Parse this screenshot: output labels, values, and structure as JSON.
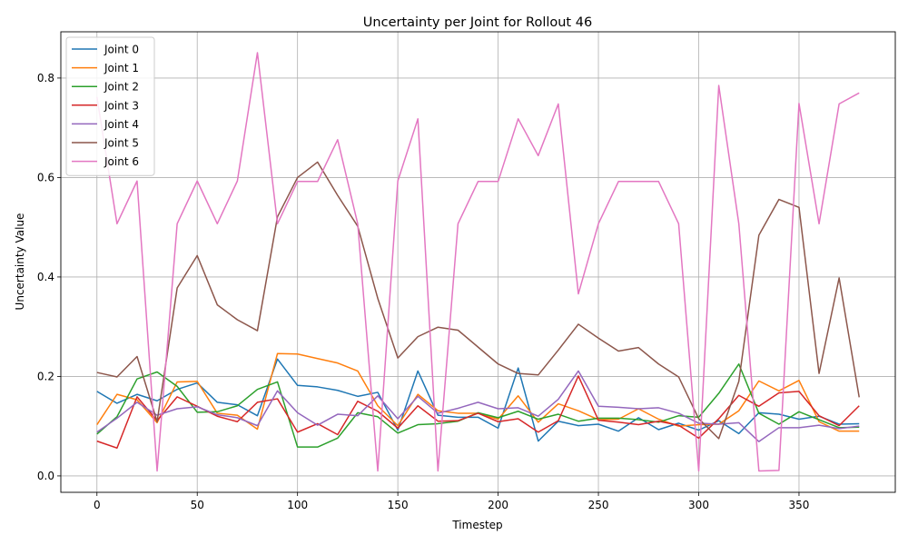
{
  "chart_data": {
    "type": "line",
    "title": "Uncertainty per Joint for Rollout 46",
    "xlabel": "Timestep",
    "ylabel": "Uncertainty Value",
    "xlim": [
      -18,
      398
    ],
    "ylim": [
      -0.033,
      0.893
    ],
    "xticks": [
      "0",
      "50",
      "100",
      "150",
      "200",
      "250",
      "300",
      "350"
    ],
    "xtick_values": [
      0,
      50,
      100,
      150,
      200,
      250,
      300,
      350
    ],
    "yticks": [
      "0.0",
      "0.2",
      "0.4",
      "0.6",
      "0.8"
    ],
    "ytick_values": [
      0.0,
      0.2,
      0.4,
      0.6,
      0.8
    ],
    "grid": true,
    "legend_position": "upper-left",
    "x": [
      0,
      10,
      20,
      30,
      40,
      50,
      60,
      70,
      80,
      90,
      100,
      110,
      120,
      130,
      140,
      150,
      160,
      170,
      180,
      190,
      200,
      210,
      220,
      230,
      240,
      250,
      260,
      270,
      280,
      290,
      300,
      310,
      320,
      330,
      340,
      350,
      360,
      370,
      380
    ],
    "series": [
      {
        "name": "Joint 0",
        "color": "#1f77b4",
        "values": [
          0.17,
          0.146,
          0.164,
          0.151,
          0.174,
          0.187,
          0.148,
          0.143,
          0.121,
          0.235,
          0.182,
          0.179,
          0.172,
          0.16,
          0.168,
          0.092,
          0.211,
          0.122,
          0.118,
          0.118,
          0.096,
          0.217,
          0.07,
          0.11,
          0.101,
          0.104,
          0.09,
          0.117,
          0.093,
          0.106,
          0.092,
          0.111,
          0.085,
          0.127,
          0.124,
          0.114,
          0.12,
          0.104,
          0.105
        ]
      },
      {
        "name": "Joint 1",
        "color": "#ff7f0e",
        "values": [
          0.103,
          0.164,
          0.153,
          0.107,
          0.189,
          0.19,
          0.126,
          0.122,
          0.094,
          0.246,
          0.245,
          0.236,
          0.227,
          0.211,
          0.141,
          0.101,
          0.164,
          0.131,
          0.126,
          0.126,
          0.114,
          0.161,
          0.108,
          0.145,
          0.131,
          0.113,
          0.114,
          0.135,
          0.114,
          0.1,
          0.103,
          0.104,
          0.131,
          0.191,
          0.171,
          0.192,
          0.109,
          0.09,
          0.09
        ]
      },
      {
        "name": "Joint 2",
        "color": "#2ca02c",
        "values": [
          0.084,
          0.119,
          0.195,
          0.209,
          0.18,
          0.128,
          0.129,
          0.141,
          0.174,
          0.189,
          0.058,
          0.058,
          0.076,
          0.127,
          0.119,
          0.086,
          0.103,
          0.105,
          0.11,
          0.127,
          0.117,
          0.13,
          0.114,
          0.124,
          0.11,
          0.116,
          0.116,
          0.113,
          0.108,
          0.121,
          0.118,
          0.166,
          0.225,
          0.126,
          0.104,
          0.129,
          0.113,
          0.097,
          0.098
        ]
      },
      {
        "name": "Joint 3",
        "color": "#d62728",
        "values": [
          0.07,
          0.056,
          0.159,
          0.111,
          0.159,
          0.14,
          0.12,
          0.109,
          0.148,
          0.155,
          0.088,
          0.105,
          0.083,
          0.15,
          0.13,
          0.096,
          0.141,
          0.11,
          0.111,
          0.126,
          0.109,
          0.115,
          0.088,
          0.111,
          0.201,
          0.112,
          0.108,
          0.103,
          0.11,
          0.102,
          0.076,
          0.115,
          0.162,
          0.14,
          0.167,
          0.17,
          0.121,
          0.101,
          0.141
        ]
      },
      {
        "name": "Joint 4",
        "color": "#9467bd",
        "values": [
          0.088,
          0.116,
          0.148,
          0.122,
          0.135,
          0.139,
          0.123,
          0.117,
          0.101,
          0.171,
          0.127,
          0.102,
          0.124,
          0.121,
          0.161,
          0.115,
          0.16,
          0.126,
          0.136,
          0.148,
          0.135,
          0.137,
          0.12,
          0.154,
          0.211,
          0.14,
          0.138,
          0.135,
          0.137,
          0.126,
          0.106,
          0.104,
          0.107,
          0.069,
          0.097,
          0.097,
          0.102,
          0.095,
          0.1
        ]
      },
      {
        "name": "Joint 5",
        "color": "#8c564b",
        "values": [
          0.208,
          0.199,
          0.24,
          0.109,
          0.378,
          0.443,
          0.344,
          0.314,
          0.292,
          0.521,
          0.6,
          0.631,
          0.564,
          0.502,
          0.357,
          0.237,
          0.28,
          0.299,
          0.293,
          0.259,
          0.225,
          0.206,
          0.203,
          0.253,
          0.305,
          0.277,
          0.251,
          0.258,
          0.225,
          0.199,
          0.115,
          0.075,
          0.19,
          0.484,
          0.556,
          0.54,
          0.206,
          0.398,
          0.158
        ]
      },
      {
        "name": "Joint 6",
        "color": "#e377c2",
        "values": [
          0.762,
          0.507,
          0.593,
          0.01,
          0.507,
          0.593,
          0.507,
          0.593,
          0.851,
          0.507,
          0.592,
          0.592,
          0.676,
          0.507,
          0.01,
          0.593,
          0.718,
          0.01,
          0.507,
          0.592,
          0.592,
          0.718,
          0.644,
          0.748,
          0.366,
          0.507,
          0.592,
          0.592,
          0.592,
          0.507,
          0.01,
          0.785,
          0.507,
          0.01,
          0.011,
          0.749,
          0.507,
          0.748,
          0.77
        ]
      }
    ]
  }
}
